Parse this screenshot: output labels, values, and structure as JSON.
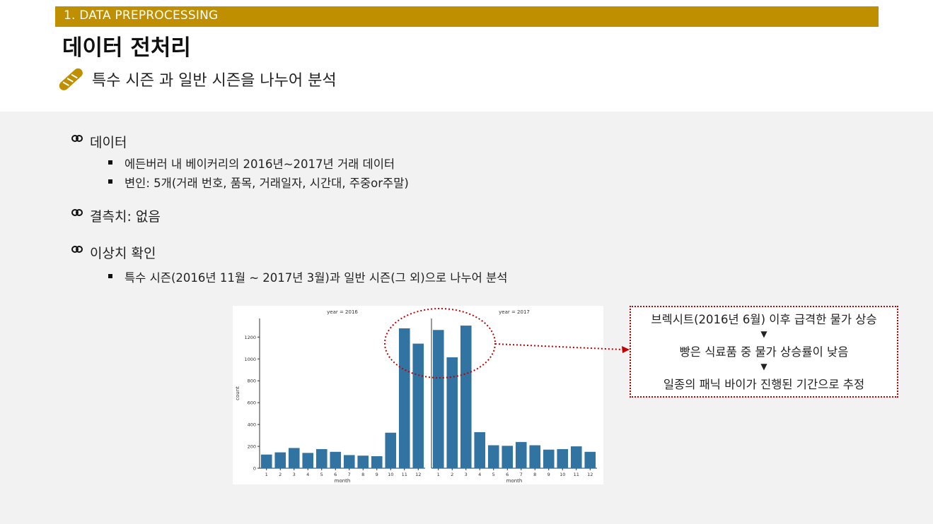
{
  "header": {
    "section_label": "1. DATA PREPROCESSING",
    "title": "데이터 전처리",
    "subtitle": "특수 시즌 과 일반 시즌을 나누어 분석"
  },
  "bullets": [
    {
      "label": "데이터",
      "subs": [
        "에든버러 내 베이커리의 2016년~2017년 거래 데이터",
        "변인: 5개(거래 번호, 품목, 거래일자, 시간대, 주중or주말)"
      ]
    },
    {
      "label": "결측치: 없음",
      "subs": []
    },
    {
      "label": "이상치 확인",
      "subs": [
        "특수 시즌(2016년 11월 ~ 2017년 3월)과 일반 시즌(그 외)으로 나누어 분석"
      ]
    }
  ],
  "callout": {
    "line1": "브렉시트(2016년 6월) 이후 급격한 물가 상승",
    "arrow1": "▼",
    "line2": "빵은 식료품 중 물가 상승률이 낮음",
    "arrow2": "▼",
    "line3": "일종의 패닉 바이가 진행된 기간으로 추정"
  },
  "colors": {
    "accent": "#bf8f00",
    "bar": "#3274a1",
    "callout_border": "#c00000",
    "background": "#f2f2f2"
  },
  "chart_data": [
    {
      "type": "bar",
      "title": "year = 2016",
      "xlabel": "month",
      "ylabel": "count",
      "categories": [
        "1",
        "2",
        "3",
        "4",
        "5",
        "6",
        "7",
        "8",
        "9",
        "10",
        "11",
        "12"
      ],
      "values": [
        125,
        145,
        185,
        140,
        175,
        150,
        120,
        115,
        110,
        325,
        1280,
        1140
      ],
      "ylim": [
        0,
        1370
      ],
      "yticks": [
        0,
        200,
        400,
        600,
        800,
        1000,
        1200
      ]
    },
    {
      "type": "bar",
      "title": "year = 2017",
      "xlabel": "month",
      "ylabel": "",
      "categories": [
        "1",
        "2",
        "3",
        "4",
        "5",
        "6",
        "7",
        "8",
        "9",
        "10",
        "11",
        "12"
      ],
      "values": [
        1265,
        1015,
        1305,
        330,
        210,
        205,
        240,
        210,
        170,
        175,
        200,
        150
      ],
      "ylim": [
        0,
        1370
      ]
    }
  ]
}
